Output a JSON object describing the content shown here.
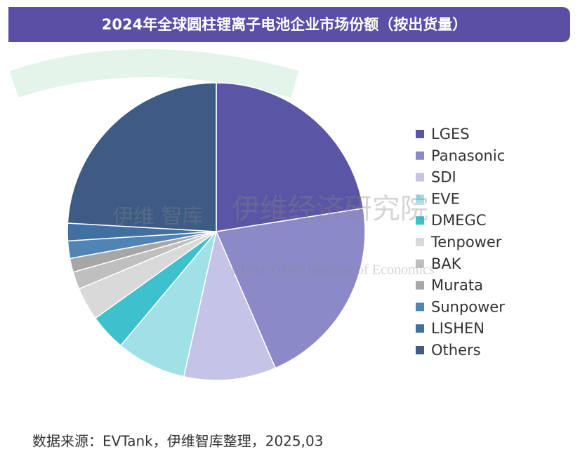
{
  "chart_data": {
    "type": "pie",
    "title": "2024年全球圆柱锂离子电池企业市场份额（按出货量）",
    "categories": [
      "LGES",
      "Panasonic",
      "SDI",
      "EVE",
      "DMEGC",
      "Tenpower",
      "BAK",
      "Murata",
      "Sunpower",
      "LISHEN",
      "Others"
    ],
    "values": [
      22.5,
      21,
      10,
      7.6,
      4,
      3.6,
      1.9,
      1.5,
      1.9,
      1.9,
      24.1
    ],
    "colors": [
      "#5b55a6",
      "#8c89c9",
      "#c5c3e6",
      "#9fe1e6",
      "#3ec1cc",
      "#d9d9d9",
      "#bfbfbf",
      "#a6a6a6",
      "#4f84b5",
      "#416f9f",
      "#3d5b85"
    ],
    "legend": "right"
  },
  "source": "数据来源：EVTank，伊维智库整理，2025,03",
  "watermark": {
    "name": "伊维经济研究院",
    "english": "China YiWei Institute of Economics",
    "logo": "伊维 智库"
  }
}
